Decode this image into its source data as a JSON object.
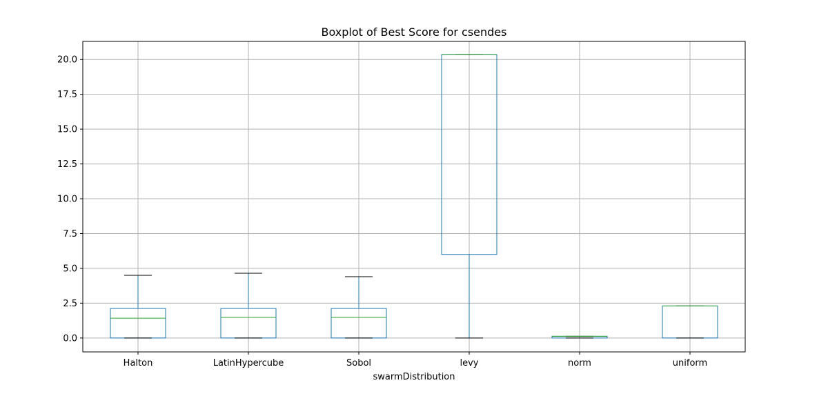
{
  "chart_data": {
    "type": "boxplot",
    "title": "Boxplot of Best Score for csendes",
    "xlabel": "swarmDistribution",
    "ylabel": "",
    "ylim": [
      -1.0,
      21.3
    ],
    "yticks": [
      "0.0",
      "2.5",
      "5.0",
      "7.5",
      "10.0",
      "12.5",
      "15.0",
      "17.5",
      "20.0"
    ],
    "ytick_values": [
      0,
      2.5,
      5,
      7.5,
      10,
      12.5,
      15,
      17.5,
      20
    ],
    "grid": true,
    "categories": [
      "Halton",
      "LatinHypercube",
      "Sobol",
      "levy",
      "norm",
      "uniform"
    ],
    "boxes": [
      {
        "name": "Halton",
        "whisker_low": 0.0,
        "q1": 0.0,
        "median": 1.42,
        "q3": 2.12,
        "whisker_high": 4.5
      },
      {
        "name": "LatinHypercube",
        "whisker_low": 0.0,
        "q1": 0.0,
        "median": 1.48,
        "q3": 2.12,
        "whisker_high": 4.65
      },
      {
        "name": "Sobol",
        "whisker_low": 0.0,
        "q1": 0.0,
        "median": 1.48,
        "q3": 2.12,
        "whisker_high": 4.4
      },
      {
        "name": "levy",
        "whisker_low": 0.0,
        "q1": 6.0,
        "median": 20.35,
        "q3": 20.35,
        "whisker_high": 20.35
      },
      {
        "name": "norm",
        "whisker_low": 0.0,
        "q1": 0.0,
        "median": 0.12,
        "q3": 0.12,
        "whisker_high": 0.12
      },
      {
        "name": "uniform",
        "whisker_low": 0.0,
        "q1": 0.0,
        "median": 2.3,
        "q3": 2.3,
        "whisker_high": 2.3
      }
    ],
    "colors": {
      "box": "#1f77b4",
      "median": "#2ca02c",
      "cap": "#000000",
      "grid": "#b0b0b0",
      "frame": "#000000"
    }
  }
}
